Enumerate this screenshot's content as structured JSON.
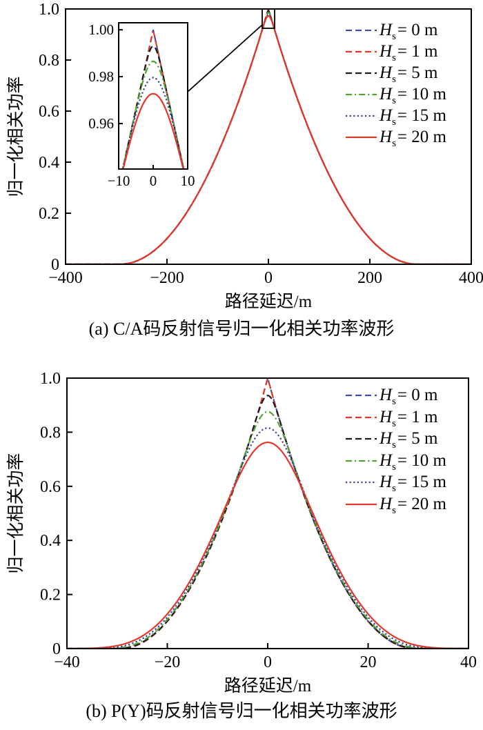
{
  "figure": {
    "background": "#ffffff",
    "axis_color": "#000000",
    "text_color": "#000000"
  },
  "chart_data": [
    {
      "id": "a",
      "type": "line",
      "caption": "(a) C/A码反射信号归一化相关功率波形",
      "xlabel": "路径延迟/m",
      "ylabel": "归一化相关功率",
      "xlim": [
        -400,
        400
      ],
      "ylim": [
        0,
        1.0
      ],
      "grid": false,
      "legend_position": "upper right",
      "xticks": [
        -400,
        -200,
        0,
        200,
        400
      ],
      "xtick_labels": [
        "−400",
        "−200",
        "0",
        "200",
        "400"
      ],
      "yticks": [
        0,
        0.2,
        0.4,
        0.6,
        0.8,
        1.0
      ],
      "ytick_labels": [
        "0",
        "0.2",
        "0.4",
        "0.6",
        "0.8",
        "1.0"
      ],
      "chip_length_m": 293,
      "curve_model": "squared-triangle (1-|x|/chip)^2 convolved with gaussian(sigma_m)",
      "series": [
        {
          "hs_m": 0,
          "peak": 1.0,
          "sigma_m": 0,
          "color": "#3d4fa4",
          "dash": "dashed",
          "legend": {
            "symbol": "H",
            "sub": "s",
            "text": "= 0 m"
          }
        },
        {
          "hs_m": 1,
          "peak": 0.999,
          "sigma_m": 0.2,
          "color": "#e5362a",
          "dash": "dashed",
          "legend": {
            "symbol": "H",
            "sub": "s",
            "text": "= 1 m"
          }
        },
        {
          "hs_m": 5,
          "peak": 0.993,
          "sigma_m": 1.3,
          "color": "#1a1a1a",
          "dash": "dashed",
          "legend": {
            "symbol": "H",
            "sub": "s",
            "text": "= 5 m"
          }
        },
        {
          "hs_m": 10,
          "peak": 0.9865,
          "sigma_m": 2.5,
          "color": "#52a132",
          "dash": "dashdot",
          "legend": {
            "symbol": "H",
            "sub": "s",
            "text": "= 10 m"
          }
        },
        {
          "hs_m": 15,
          "peak": 0.9795,
          "sigma_m": 3.8,
          "color": "#383f9d",
          "dash": "dotted",
          "legend": {
            "symbol": "H",
            "sub": "s",
            "text": "= 15 m"
          }
        },
        {
          "hs_m": 20,
          "peak": 0.9725,
          "sigma_m": 5.1,
          "color": "#e5362a",
          "dash": "solid",
          "legend": {
            "symbol": "H",
            "sub": "s",
            "text": "= 20 m"
          }
        }
      ],
      "inset": {
        "xlim": [
          -10,
          10
        ],
        "ylim": [
          0.9406,
          1.003
        ],
        "xticks": [
          -10,
          0,
          10
        ],
        "xtick_labels": [
          "−10",
          "0",
          "10"
        ],
        "yticks": [
          0.96,
          0.98,
          1.0
        ],
        "ytick_labels": [
          "0.96",
          "0.98",
          "1.00"
        ],
        "peak_values": [
          1.0,
          0.999,
          0.993,
          0.9865,
          0.9795,
          0.9725
        ]
      }
    },
    {
      "id": "b",
      "type": "line",
      "caption": "(b) P(Y)码反射信号归一化相关功率波形",
      "xlabel": "路径延迟/m",
      "ylabel": "归一化相关功率",
      "xlim": [
        -40,
        40
      ],
      "ylim": [
        0,
        1.0
      ],
      "grid": false,
      "legend_position": "upper right",
      "xticks": [
        -40,
        -20,
        0,
        20,
        40
      ],
      "xtick_labels": [
        "−40",
        "−20",
        "0",
        "20",
        "40"
      ],
      "yticks": [
        0,
        0.2,
        0.4,
        0.6,
        0.8,
        1.0
      ],
      "ytick_labels": [
        "0",
        "0.2",
        "0.4",
        "0.6",
        "0.8",
        "1.0"
      ],
      "chip_length_m": 29.3,
      "curve_model": "squared-triangle (1-|x|/chip)^2 convolved with gaussian(sigma_m)",
      "series": [
        {
          "hs_m": 0,
          "peak": 1.0,
          "sigma_m": 0,
          "color": "#3d4fa4",
          "dash": "dashed",
          "legend": {
            "symbol": "H",
            "sub": "s",
            "text": "= 0 m"
          }
        },
        {
          "hs_m": 1,
          "peak": 0.995,
          "sigma_m": 0.09,
          "color": "#e5362a",
          "dash": "dashed",
          "legend": {
            "symbol": "H",
            "sub": "s",
            "text": "= 1 m"
          }
        },
        {
          "hs_m": 5,
          "peak": 0.935,
          "sigma_m": 1.22,
          "color": "#1a1a1a",
          "dash": "dashed",
          "legend": {
            "symbol": "H",
            "sub": "s",
            "text": "= 5 m"
          }
        },
        {
          "hs_m": 10,
          "peak": 0.875,
          "sigma_m": 2.42,
          "color": "#52a132",
          "dash": "dashdot",
          "legend": {
            "symbol": "H",
            "sub": "s",
            "text": "= 10 m"
          }
        },
        {
          "hs_m": 15,
          "peak": 0.815,
          "sigma_m": 3.7,
          "color": "#383f9d",
          "dash": "dotted",
          "legend": {
            "symbol": "H",
            "sub": "s",
            "text": "= 15 m"
          }
        },
        {
          "hs_m": 20,
          "peak": 0.76,
          "sigma_m": 4.9,
          "color": "#e5362a",
          "dash": "solid",
          "legend": {
            "symbol": "H",
            "sub": "s",
            "text": "= 20 m"
          }
        }
      ]
    }
  ]
}
